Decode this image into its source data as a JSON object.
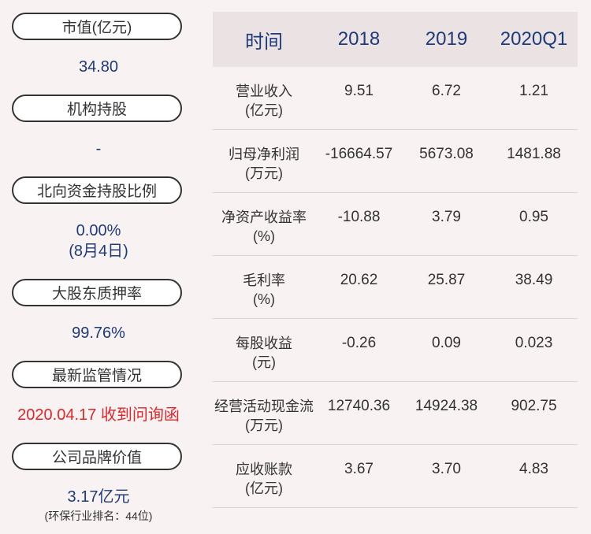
{
  "left_panel": {
    "market_cap": {
      "label": "市值(亿元)",
      "value": "34.80"
    },
    "institutional": {
      "label": "机构持股",
      "value": "-"
    },
    "northbound": {
      "label": "北向资金持股比例",
      "value": "0.00%",
      "date": "(8月4日)"
    },
    "pledge": {
      "label": "大股东质押率",
      "value": "99.76%"
    },
    "regulation": {
      "label": "最新监管情况",
      "value": "2020.04.17 收到问询函"
    },
    "brand": {
      "label": "公司品牌价值",
      "value": "3.17亿元",
      "note": "(环保行业排名：44位)"
    }
  },
  "table": {
    "headers": [
      "时间",
      "2018",
      "2019",
      "2020Q1"
    ],
    "rows": [
      {
        "label": "营业收入",
        "unit": "(亿元)",
        "values": [
          "9.51",
          "6.72",
          "1.21"
        ]
      },
      {
        "label": "归母净利润",
        "unit": "(万元)",
        "values": [
          "-16664.57",
          "5673.08",
          "1481.88"
        ]
      },
      {
        "label": "净资产收益率",
        "unit": "(%)",
        "values": [
          "-10.88",
          "3.79",
          "0.95"
        ]
      },
      {
        "label": "毛利率",
        "unit": "(%)",
        "values": [
          "20.62",
          "25.87",
          "38.49"
        ]
      },
      {
        "label": "每股收益",
        "unit": "(元)",
        "values": [
          "-0.26",
          "0.09",
          "0.023"
        ]
      },
      {
        "label": "经营活动现金流",
        "unit": "(万元)",
        "values": [
          "12740.36",
          "14924.38",
          "902.75"
        ]
      },
      {
        "label": "应收账款",
        "unit": "(亿元)",
        "values": [
          "3.67",
          "3.70",
          "4.83"
        ]
      }
    ]
  }
}
